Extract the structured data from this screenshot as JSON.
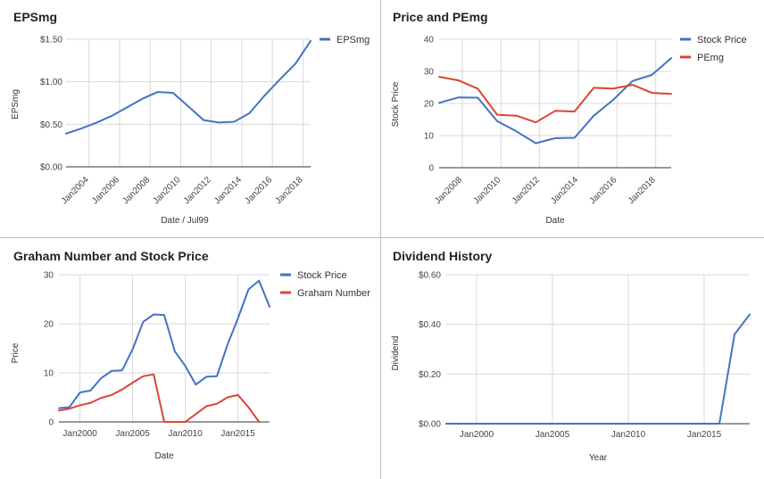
{
  "chart_data": [
    {
      "id": "eps",
      "type": "line",
      "title": "EPSmg",
      "xlabel": "Date / Jul99",
      "ylabel": "EPSmg",
      "xlim": [
        2002.5,
        2018.5
      ],
      "ylim": [
        0,
        1.5
      ],
      "yticks": [
        {
          "value": 0,
          "label": "$0.00"
        },
        {
          "value": 0.5,
          "label": "$0.50"
        },
        {
          "value": 1.0,
          "label": "$1.00"
        },
        {
          "value": 1.5,
          "label": "$1.50"
        }
      ],
      "xticks": [
        {
          "value": 2004,
          "label": "Jan2004"
        },
        {
          "value": 2006,
          "label": "Jan2006"
        },
        {
          "value": 2008,
          "label": "Jan2008"
        },
        {
          "value": 2010,
          "label": "Jan2010"
        },
        {
          "value": 2012,
          "label": "Jan2012"
        },
        {
          "value": 2014,
          "label": "Jan2014"
        },
        {
          "value": 2016,
          "label": "Jan2016"
        },
        {
          "value": 2018,
          "label": "Jan2018"
        }
      ],
      "x_label_style": "rotated",
      "legend_position": "right",
      "series": [
        {
          "name": "EPSmg",
          "color": "#4472c4",
          "x": [
            2002.5,
            2003.5,
            2004.5,
            2005.5,
            2006.5,
            2007.5,
            2008.5,
            2009.5,
            2010.5,
            2011.5,
            2012.5,
            2013.5,
            2014.5,
            2015.5,
            2016.5,
            2017.5,
            2018.5
          ],
          "y": [
            0.39,
            0.45,
            0.52,
            0.6,
            0.7,
            0.8,
            0.88,
            0.87,
            0.71,
            0.55,
            0.52,
            0.53,
            0.63,
            0.84,
            1.03,
            1.21,
            1.48
          ]
        }
      ]
    },
    {
      "id": "price-pe",
      "type": "line",
      "title": "Price and PEmg",
      "xlabel": "Date",
      "ylabel": "Stock Price",
      "xlim": [
        2006.8,
        2018.8
      ],
      "ylim": [
        0,
        40
      ],
      "yticks": [
        {
          "value": 0,
          "label": "0"
        },
        {
          "value": 10,
          "label": "10"
        },
        {
          "value": 20,
          "label": "20"
        },
        {
          "value": 30,
          "label": "30"
        },
        {
          "value": 40,
          "label": "40"
        }
      ],
      "xticks": [
        {
          "value": 2008,
          "label": "Jan2008"
        },
        {
          "value": 2010,
          "label": "Jan2010"
        },
        {
          "value": 2012,
          "label": "Jan2012"
        },
        {
          "value": 2014,
          "label": "Jan2014"
        },
        {
          "value": 2016,
          "label": "Jan2016"
        },
        {
          "value": 2018,
          "label": "Jan2018"
        }
      ],
      "x_label_style": "rotated",
      "legend_position": "right",
      "series": [
        {
          "name": "Stock Price",
          "color": "#4472c4",
          "x": [
            2006.8,
            2007.8,
            2008.8,
            2009.8,
            2010.8,
            2011.8,
            2012.8,
            2013.8,
            2014.8,
            2015.8,
            2016.8,
            2017.8,
            2018.8
          ],
          "y": [
            20.2,
            21.9,
            21.8,
            14.5,
            11.3,
            7.6,
            9.2,
            9.3,
            16.2,
            21.1,
            27.0,
            28.9,
            34.1
          ]
        },
        {
          "name": "PEmg",
          "color": "#db4437",
          "x": [
            2006.8,
            2007.8,
            2008.8,
            2009.8,
            2010.8,
            2011.8,
            2012.8,
            2013.8,
            2014.8,
            2015.8,
            2016.8,
            2017.8,
            2018.8
          ],
          "y": [
            28.3,
            27.2,
            24.6,
            16.5,
            16.2,
            14.1,
            17.7,
            17.5,
            24.9,
            24.6,
            25.8,
            23.3,
            23.0
          ]
        }
      ]
    },
    {
      "id": "graham",
      "type": "line",
      "title": "Graham Number and Stock Price",
      "xlabel": "Date",
      "ylabel": "Price",
      "xlim": [
        1998,
        2018
      ],
      "ylim": [
        0,
        30
      ],
      "yticks": [
        {
          "value": 0,
          "label": "0"
        },
        {
          "value": 10,
          "label": "10"
        },
        {
          "value": 20,
          "label": "20"
        },
        {
          "value": 30,
          "label": "30"
        }
      ],
      "xticks": [
        {
          "value": 2000,
          "label": "Jan2000"
        },
        {
          "value": 2005,
          "label": "Jan2005"
        },
        {
          "value": 2010,
          "label": "Jan2010"
        },
        {
          "value": 2015,
          "label": "Jan2015"
        }
      ],
      "x_label_style": "horizontal",
      "legend_position": "right",
      "series": [
        {
          "name": "Stock Price",
          "color": "#4472c4",
          "x": [
            1998,
            1999,
            2000,
            2001,
            2002,
            2003,
            2004,
            2005,
            2006,
            2007,
            2008,
            2009,
            2010,
            2011,
            2012,
            2013,
            2014,
            2015,
            2016,
            2017,
            2018
          ],
          "y": [
            2.8,
            3.0,
            6.0,
            6.4,
            8.9,
            10.4,
            10.5,
            14.8,
            20.4,
            21.9,
            21.8,
            14.4,
            11.4,
            7.6,
            9.2,
            9.3,
            15.7,
            21.1,
            27.0,
            28.8,
            23.5
          ]
        },
        {
          "name": "Graham Number",
          "color": "#db4437",
          "x": [
            1998,
            1999,
            2000,
            2001,
            2002,
            2003,
            2004,
            2005,
            2006,
            2007,
            2008,
            2009,
            2010,
            2011,
            2012,
            2013,
            2014,
            2015,
            2016,
            2017
          ],
          "y": [
            2.3,
            2.7,
            3.4,
            3.9,
            4.9,
            5.5,
            6.6,
            8.0,
            9.3,
            9.7,
            0,
            0,
            0,
            1.6,
            3.2,
            3.7,
            5.0,
            5.5,
            3.0,
            0
          ]
        }
      ]
    },
    {
      "id": "dividend",
      "type": "line",
      "title": "Dividend History",
      "xlabel": "Year",
      "ylabel": "Dividend",
      "xlim": [
        1998,
        2018
      ],
      "ylim": [
        0,
        0.6
      ],
      "yticks": [
        {
          "value": 0,
          "label": "$0.00"
        },
        {
          "value": 0.2,
          "label": "$0.20"
        },
        {
          "value": 0.4,
          "label": "$0.40"
        },
        {
          "value": 0.6,
          "label": "$0.60"
        }
      ],
      "xticks": [
        {
          "value": 2000,
          "label": "Jan2000"
        },
        {
          "value": 2005,
          "label": "Jan2005"
        },
        {
          "value": 2010,
          "label": "Jan2010"
        },
        {
          "value": 2015,
          "label": "Jan2015"
        }
      ],
      "x_label_style": "horizontal",
      "legend_position": "none",
      "series": [
        {
          "name": "Dividend",
          "color": "#4472c4",
          "x": [
            1998,
            2000,
            2002,
            2004,
            2006,
            2008,
            2010,
            2012,
            2014,
            2016,
            2017,
            2018
          ],
          "y": [
            0,
            0,
            0,
            0,
            0,
            0,
            0,
            0,
            0,
            0,
            0.36,
            0.44
          ]
        }
      ]
    }
  ]
}
